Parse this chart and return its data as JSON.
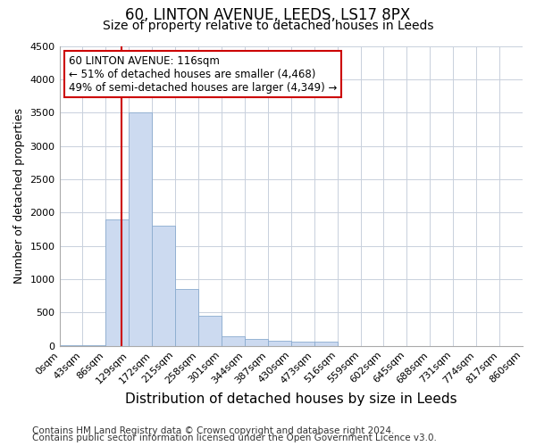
{
  "title1": "60, LINTON AVENUE, LEEDS, LS17 8PX",
  "title2": "Size of property relative to detached houses in Leeds",
  "xlabel": "Distribution of detached houses by size in Leeds",
  "ylabel": "Number of detached properties",
  "bin_edges": [
    0,
    43,
    86,
    129,
    172,
    215,
    258,
    301,
    344,
    387,
    430,
    473,
    516,
    559,
    602,
    645,
    688,
    731,
    774,
    817,
    860
  ],
  "bar_heights": [
    5,
    10,
    1900,
    3500,
    1800,
    850,
    450,
    150,
    100,
    80,
    70,
    60,
    0,
    0,
    0,
    0,
    0,
    0,
    0,
    0
  ],
  "bar_color": "#ccdaf0",
  "bar_edge_color": "#8aabcf",
  "vline_x": 116,
  "vline_color": "#cc0000",
  "annotation_line1": "60 LINTON AVENUE: 116sqm",
  "annotation_line2": "← 51% of detached houses are smaller (4,468)",
  "annotation_line3": "49% of semi-detached houses are larger (4,349) →",
  "annotation_box_color": "#ffffff",
  "annotation_box_edge": "#cc0000",
  "ylim": [
    0,
    4500
  ],
  "yticks": [
    0,
    500,
    1000,
    1500,
    2000,
    2500,
    3000,
    3500,
    4000,
    4500
  ],
  "footer1": "Contains HM Land Registry data © Crown copyright and database right 2024.",
  "footer2": "Contains public sector information licensed under the Open Government Licence v3.0.",
  "bg_color": "#ffffff",
  "grid_color": "#c8d0dc",
  "title1_fontsize": 12,
  "title2_fontsize": 10,
  "xlabel_fontsize": 11,
  "ylabel_fontsize": 9,
  "tick_fontsize": 8,
  "annotation_fontsize": 8.5,
  "footer_fontsize": 7.5
}
